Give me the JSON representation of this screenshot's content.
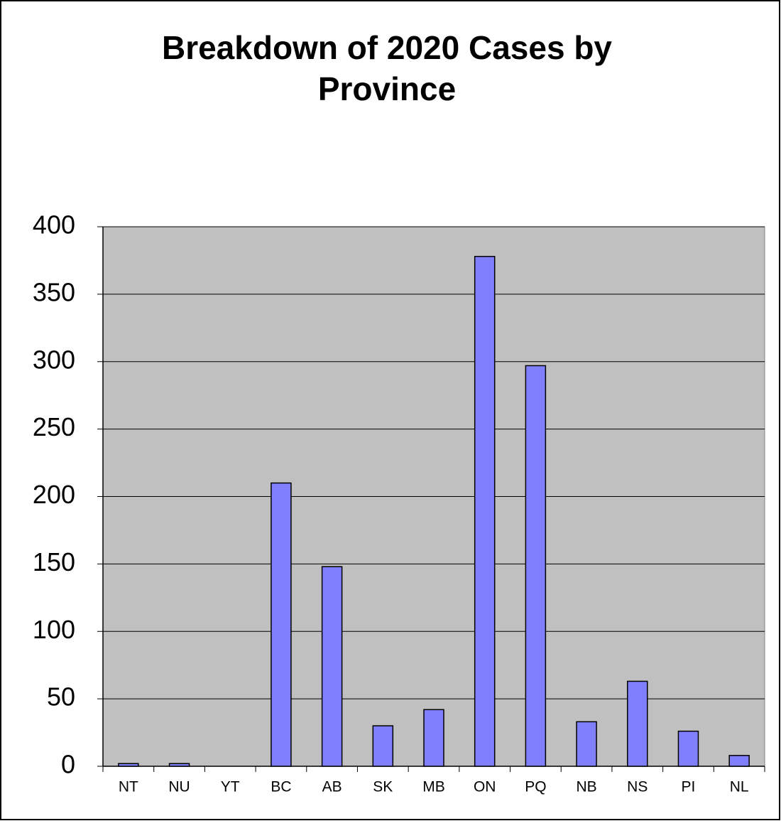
{
  "chart_data": {
    "type": "bar",
    "title": "Breakdown of 2020 Cases by Province",
    "categories": [
      "NT",
      "NU",
      "YT",
      "BC",
      "AB",
      "SK",
      "MB",
      "ON",
      "PQ",
      "NB",
      "NS",
      "PI",
      "NL"
    ],
    "values": [
      2,
      2,
      0,
      210,
      148,
      30,
      42,
      378,
      297,
      33,
      63,
      26,
      8
    ],
    "color": "#8080ff",
    "ylim": [
      0,
      400
    ],
    "yticks": [
      0,
      50,
      100,
      150,
      200,
      250,
      300,
      350,
      400
    ],
    "grid": true
  }
}
